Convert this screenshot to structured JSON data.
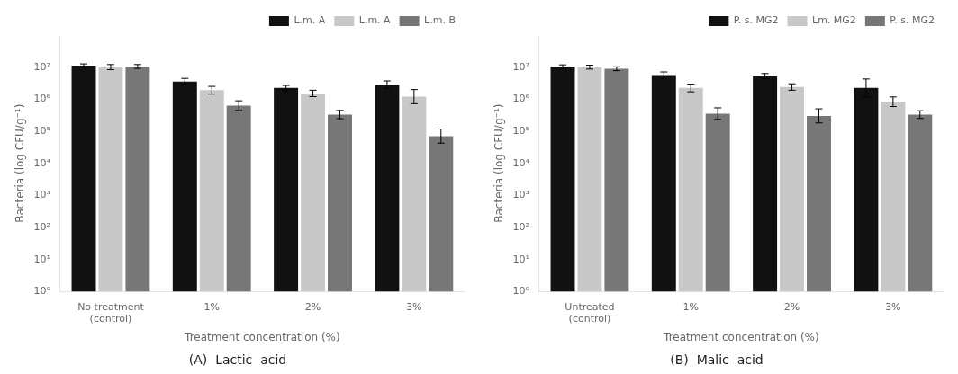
{
  "chart_data": [
    {
      "type": "bar",
      "title": "(A)  Lactic  acid",
      "x_label": "Treatment concentration (%)",
      "y_label": "Bacteria (log CFU/g⁻¹)",
      "categories": [
        "No treatment\n(control)",
        "1%",
        "2%",
        "3%"
      ],
      "series": [
        {
          "name": "L.m. A",
          "color": "#111111",
          "values": [
            11220185,
            3548134,
            2238721,
            2818383
          ],
          "error_low": [
            10000000,
            2818383,
            1862087,
            2137962
          ],
          "error_high": [
            12589254,
            4466836,
            2691535,
            3715352
          ]
        },
        {
          "name": "L.m. A",
          "color": "#c8c8c8",
          "values": [
            10000000,
            1905461,
            1513561,
            1202264
          ],
          "error_low": [
            8317638,
            1445440,
            1202264,
            724436.0
          ],
          "error_high": [
            12022644,
            2511886,
            1905461,
            1995262
          ]
        },
        {
          "name": "L.m. B",
          "color": "#777777",
          "values": [
            10471285,
            630957.3,
            331131.1,
            70794.58
          ],
          "error_low": [
            9120108,
            446683.6,
            245470.9,
            42657.95
          ],
          "error_high": [
            12022644,
            891250.9,
            446683.6,
            117489.8
          ]
        }
      ],
      "log": "y",
      "ylim": [
        1,
        100000000
      ],
      "yticks": [
        {
          "value": 1,
          "label": "10⁰"
        },
        {
          "value": 10,
          "label": "10¹"
        },
        {
          "value": 100,
          "label": "10²"
        },
        {
          "value": 1000,
          "label": "10³"
        },
        {
          "value": 10000,
          "label": "10⁴"
        },
        {
          "value": 100000,
          "label": "10⁵"
        },
        {
          "value": 1000000,
          "label": "10⁶"
        },
        {
          "value": 10000000,
          "label": "10⁷"
        }
      ],
      "grid": false,
      "legend": "upper right"
    },
    {
      "type": "bar",
      "title": "(B)  Malic  acid",
      "x_label": "Treatment concentration (%)",
      "y_label": "Bacteria (log CFU/g⁻¹)",
      "categories": [
        "Untreated\n(control)",
        "1%",
        "2%",
        "3%"
      ],
      "series": [
        {
          "name": "P. s. MG2",
          "color": "#111111",
          "values": [
            10471285,
            5623413,
            5248075,
            2238721
          ],
          "error_low": [
            9332543,
            4466836,
            4365158,
            1174898
          ],
          "error_high": [
            11748976,
            7079458,
            6309573,
            4265795
          ]
        },
        {
          "name": "Lm. MG2",
          "color": "#c8c8c8",
          "values": [
            10000000,
            2238721,
            2398833,
            831763.8
          ],
          "error_low": [
            8709636,
            1698244,
            1905461,
            588843.7
          ],
          "error_high": [
            11481536,
            2951209,
            3019952,
            1174898
          ]
        },
        {
          "name": "P. s. MG2",
          "color": "#777777",
          "values": [
            8912509,
            354813.4,
            301995.2,
            331131.1
          ],
          "error_low": [
            7762471,
            234422.9,
            181970.1,
            251188.6
          ],
          "error_high": [
            10232930,
            537031.8,
            501187.2,
            436515.8
          ]
        }
      ],
      "log": "y",
      "ylim": [
        1,
        100000000
      ],
      "yticks": [
        {
          "value": 1,
          "label": "10⁰"
        },
        {
          "value": 10,
          "label": "10¹"
        },
        {
          "value": 100,
          "label": "10²"
        },
        {
          "value": 1000,
          "label": "10³"
        },
        {
          "value": 10000,
          "label": "10⁴"
        },
        {
          "value": 100000,
          "label": "10⁵"
        },
        {
          "value": 1000000,
          "label": "10⁶"
        },
        {
          "value": 10000000,
          "label": "10⁷"
        }
      ],
      "grid": false,
      "legend": "upper right"
    }
  ]
}
